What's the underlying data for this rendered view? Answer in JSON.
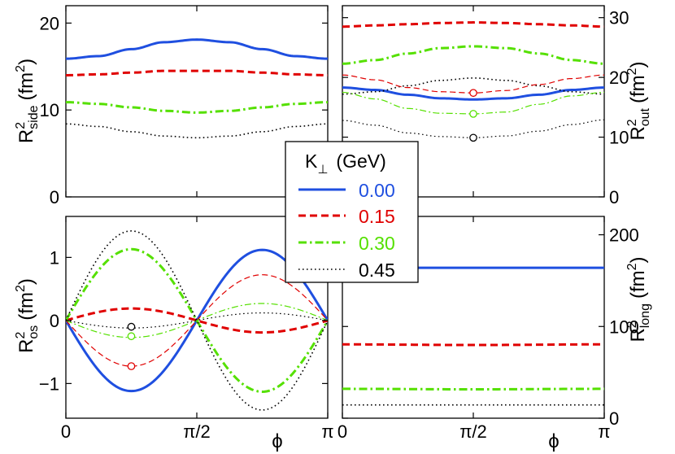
{
  "chart_data": [
    {
      "id": "side",
      "type": "line",
      "ylabel": "R²side (fm²)",
      "ylabel_main": "R",
      "ylabel_sup": "2",
      "ylabel_sub": "side",
      "ylabel_unit": "(fm",
      "ylabel_unit_sup": "2",
      "ylabel_unit_close": ")",
      "y_axis_side": "left",
      "xlim": [
        0,
        3.14159
      ],
      "ylim": [
        0,
        22
      ],
      "yticks": [
        0,
        10,
        20
      ],
      "ytick_labels": [
        "0",
        "10",
        "20"
      ],
      "xticks": [
        0,
        1.5708,
        3.14159
      ],
      "series": [
        {
          "name": "0.00",
          "x": [
            0,
            0.3927,
            0.7854,
            1.1781,
            1.5708,
            1.9635,
            2.3562,
            2.7489,
            3.1416
          ],
          "values": [
            15.9,
            16.2,
            17.0,
            17.8,
            18.1,
            17.8,
            17.0,
            16.2,
            15.9
          ]
        },
        {
          "name": "0.15",
          "x": [
            0,
            0.3927,
            0.7854,
            1.1781,
            1.5708,
            1.9635,
            2.3562,
            2.7489,
            3.1416
          ],
          "values": [
            14.0,
            14.1,
            14.3,
            14.5,
            14.5,
            14.5,
            14.3,
            14.1,
            14.0
          ]
        },
        {
          "name": "0.30",
          "x": [
            0,
            0.3927,
            0.7854,
            1.1781,
            1.5708,
            1.9635,
            2.3562,
            2.7489,
            3.1416
          ],
          "values": [
            10.9,
            10.7,
            10.3,
            9.9,
            9.7,
            9.9,
            10.3,
            10.7,
            10.9
          ]
        },
        {
          "name": "0.45",
          "x": [
            0,
            0.3927,
            0.7854,
            1.1781,
            1.5708,
            1.9635,
            2.3562,
            2.7489,
            3.1416
          ],
          "values": [
            8.4,
            8.1,
            7.5,
            7.0,
            6.8,
            7.0,
            7.5,
            8.1,
            8.4
          ]
        }
      ],
      "markers": []
    },
    {
      "id": "out",
      "type": "line",
      "ylabel": "R²out (fm²)",
      "ylabel_main": "R",
      "ylabel_sup": "2",
      "ylabel_sub": "out",
      "ylabel_unit": "(fm",
      "ylabel_unit_sup": "2",
      "ylabel_unit_close": ")",
      "y_axis_side": "right",
      "xlim": [
        0,
        3.14159
      ],
      "ylim": [
        0,
        32
      ],
      "yticks": [
        0,
        10,
        20,
        30
      ],
      "ytick_labels": [
        "0",
        "10",
        "20",
        "30"
      ],
      "xticks": [
        0,
        1.5708,
        3.14159
      ],
      "series": [
        {
          "name": "0.00",
          "style": "thick",
          "x": [
            0,
            0.3927,
            0.7854,
            1.1781,
            1.5708,
            1.9635,
            2.3562,
            2.7489,
            3.1416
          ],
          "values": [
            18.3,
            17.9,
            17.1,
            16.5,
            16.3,
            16.5,
            17.1,
            17.9,
            18.3
          ]
        },
        {
          "name": "0.15",
          "style": "thick",
          "x": [
            0,
            0.3927,
            0.7854,
            1.1781,
            1.5708,
            1.9635,
            2.3562,
            2.7489,
            3.1416
          ],
          "values": [
            28.5,
            28.7,
            28.9,
            29.1,
            29.2,
            29.1,
            28.9,
            28.7,
            28.5
          ]
        },
        {
          "name": "0.30",
          "style": "thick",
          "x": [
            0,
            0.3927,
            0.7854,
            1.1781,
            1.5708,
            1.9635,
            2.3562,
            2.7489,
            3.1416
          ],
          "values": [
            22.3,
            22.9,
            24.0,
            24.9,
            25.2,
            24.9,
            24.0,
            22.9,
            22.3
          ]
        },
        {
          "name": "0.45",
          "style": "thick",
          "x": [
            0,
            0.3927,
            0.7854,
            1.1781,
            1.5708,
            1.9635,
            2.3562,
            2.7489,
            3.1416
          ],
          "values": [
            17.2,
            17.6,
            18.6,
            19.5,
            19.9,
            19.5,
            18.6,
            17.6,
            17.2
          ]
        },
        {
          "name": "0.15",
          "style": "thin",
          "x": [
            0,
            0.3927,
            0.7854,
            1.1781,
            1.5708,
            1.9635,
            2.3562,
            2.7489,
            3.1416
          ],
          "values": [
            20.4,
            19.6,
            18.3,
            17.6,
            17.4,
            17.8,
            18.8,
            19.8,
            20.4
          ]
        },
        {
          "name": "0.30",
          "style": "thin",
          "x": [
            0,
            0.3927,
            0.7854,
            1.1781,
            1.5708,
            1.9635,
            2.3562,
            2.7489,
            3.1416
          ],
          "values": [
            17.5,
            16.4,
            14.8,
            14.0,
            13.9,
            14.2,
            15.5,
            16.9,
            17.5
          ]
        },
        {
          "name": "0.45",
          "style": "thin",
          "x": [
            0,
            0.3927,
            0.7854,
            1.1781,
            1.5708,
            1.9635,
            2.3562,
            2.7489,
            3.1416
          ],
          "values": [
            12.8,
            12.0,
            10.7,
            10.1,
            9.9,
            10.2,
            11.0,
            12.1,
            12.9
          ]
        }
      ],
      "markers": [
        {
          "series": "0.15",
          "x": 1.5708,
          "y": 17.4
        },
        {
          "series": "0.30",
          "x": 1.5708,
          "y": 13.9
        },
        {
          "series": "0.45",
          "x": 1.5708,
          "y": 9.9
        }
      ]
    },
    {
      "id": "os",
      "type": "line",
      "ylabel": "R²os (fm²)",
      "ylabel_main": "R",
      "ylabel_sup": "2",
      "ylabel_sub": "os",
      "ylabel_unit": "(fm",
      "ylabel_unit_sup": "2",
      "ylabel_unit_close": ")",
      "y_axis_side": "left",
      "xlim": [
        0,
        3.14159
      ],
      "ylim": [
        -1.55,
        1.65
      ],
      "yticks": [
        -1,
        0,
        1
      ],
      "ytick_labels": [
        "−1",
        "0",
        "1"
      ],
      "xticks": [
        0,
        1.5708,
        3.14159
      ],
      "xtick_labels": [
        "0",
        "π/2",
        "π"
      ],
      "xlabel": "ϕ",
      "series": [
        {
          "name": "0.00",
          "style": "thick",
          "fn": "sin",
          "a1": 1.12,
          "a2": 0.0
        },
        {
          "name": "0.15",
          "style": "thick",
          "fn": "sin",
          "a1": -0.19,
          "a2": 0.0
        },
        {
          "name": "0.30",
          "style": "thick",
          "fn": "sin",
          "a1": -1.13,
          "a2": 0.0
        },
        {
          "name": "0.45",
          "style": "thick",
          "fn": "sin",
          "a1": -1.42,
          "a2": 0.0
        },
        {
          "name": "0.15",
          "style": "thin",
          "fn": "sin",
          "a1": 0.725,
          "a2": 0.0
        },
        {
          "name": "0.30",
          "style": "thin",
          "fn": "sin",
          "a1": 0.27,
          "a2": 0.0
        },
        {
          "name": "0.45",
          "style": "thin",
          "fn": "sin",
          "a1": 0.12,
          "a2": 0.0
        }
      ],
      "markers": [
        {
          "series": "0.15",
          "x": 0.785,
          "y": -0.725
        },
        {
          "series": "0.30",
          "x": 0.785,
          "y": -0.25
        },
        {
          "series": "0.45",
          "x": 0.785,
          "y": -0.1
        }
      ]
    },
    {
      "id": "long",
      "type": "line",
      "ylabel": "R²long (fm²)",
      "ylabel_main": "R",
      "ylabel_sup": "2",
      "ylabel_sub": "long",
      "ylabel_unit": "(fm",
      "ylabel_unit_sup": "2",
      "ylabel_unit_close": ")",
      "y_axis_side": "right",
      "xlim": [
        0,
        3.14159
      ],
      "ylim": [
        0,
        220
      ],
      "yticks": [
        0,
        100,
        200
      ],
      "ytick_labels": [
        "0",
        "100",
        "200"
      ],
      "xticks": [
        0,
        1.5708,
        3.14159
      ],
      "xtick_labels": [
        "0",
        "π/2",
        "π"
      ],
      "xlabel": "ϕ",
      "series": [
        {
          "name": "0.00",
          "x": [
            0,
            3.1416
          ],
          "values": [
            164,
            164
          ]
        },
        {
          "name": "0.15",
          "x": [
            0,
            1.5708,
            3.1416
          ],
          "values": [
            80.5,
            79.8,
            80.5
          ]
        },
        {
          "name": "0.30",
          "x": [
            0,
            1.5708,
            3.1416
          ],
          "values": [
            32,
            31.5,
            32
          ]
        },
        {
          "name": "0.45",
          "x": [
            0,
            3.1416
          ],
          "values": [
            14.5,
            14.5
          ]
        }
      ],
      "markers": []
    }
  ],
  "legend": {
    "title_main": "K",
    "title_sub": "⊥",
    "title_unit": "(GeV)",
    "entries": [
      {
        "label": "0.00",
        "color": "#1f4fe0",
        "dash": "solid"
      },
      {
        "label": "0.15",
        "color": "#e00000",
        "dash": "dashed"
      },
      {
        "label": "0.30",
        "color": "#55e000",
        "dash": "dashdot"
      },
      {
        "label": "0.45",
        "color": "#000000",
        "dash": "dotted"
      }
    ]
  },
  "colors": {
    "0.00": "#1f4fe0",
    "0.15": "#e00000",
    "0.30": "#55e000",
    "0.45": "#000000"
  }
}
